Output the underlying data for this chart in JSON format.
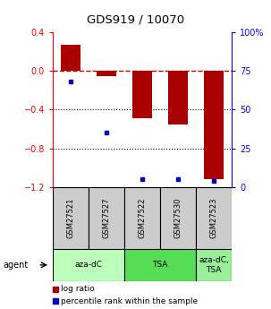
{
  "title": "GDS919 / 10070",
  "samples": [
    "GSM27521",
    "GSM27527",
    "GSM27522",
    "GSM27530",
    "GSM27523"
  ],
  "log_ratios": [
    0.27,
    -0.05,
    -0.49,
    -0.55,
    -1.12
  ],
  "percentile_ranks": [
    68,
    35,
    5,
    5,
    4
  ],
  "ylim_left": [
    -1.2,
    0.4
  ],
  "yticks_left": [
    0.4,
    0.0,
    -0.4,
    -0.8,
    -1.2
  ],
  "yticks_right": [
    100,
    75,
    50,
    25,
    0
  ],
  "bar_color": "#aa0000",
  "dot_color": "#0000bb",
  "hline_color": "#cc0000",
  "grid_color": "#000000",
  "sample_bg": "#cccccc",
  "agent_info": [
    {
      "start": 0,
      "end": 1,
      "color": "#bbffbb",
      "label": "aza-dC"
    },
    {
      "start": 2,
      "end": 3,
      "color": "#55dd55",
      "label": "TSA"
    },
    {
      "start": 4,
      "end": 4,
      "color": "#99ee99",
      "label": "aza-dC,\nTSA"
    }
  ],
  "legend_labels": [
    "log ratio",
    "percentile rank within the sample"
  ]
}
